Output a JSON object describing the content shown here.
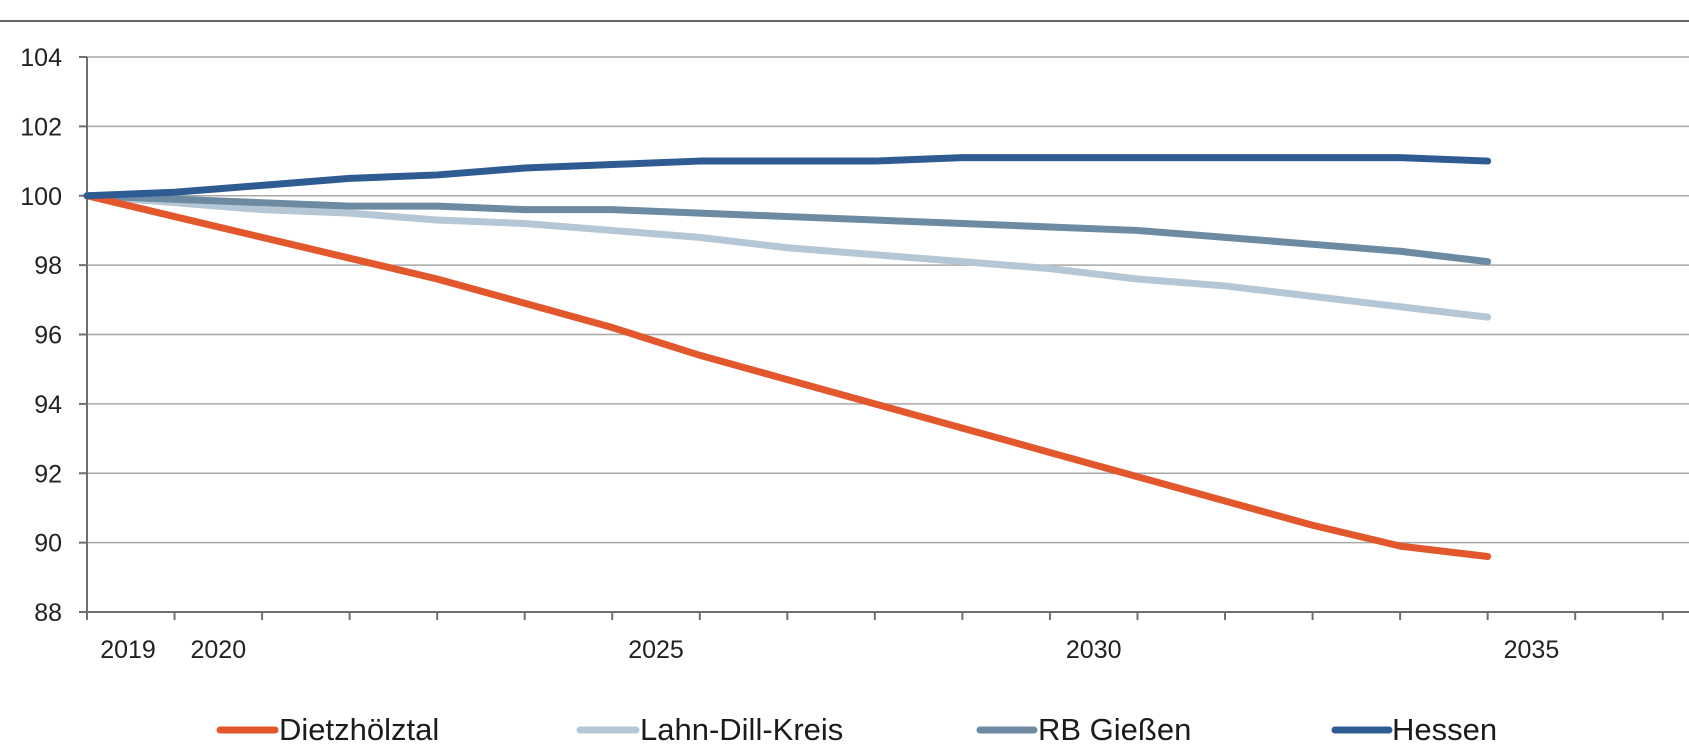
{
  "chart_data": {
    "type": "line",
    "title": "",
    "xlabel": "",
    "ylabel": "",
    "x_ticks": [
      2019,
      2020,
      2025,
      2030,
      2035
    ],
    "xlim": [
      2019,
      2037
    ],
    "ylim": [
      88,
      104
    ],
    "y_ticks": [
      88,
      90,
      92,
      94,
      96,
      98,
      100,
      102,
      104
    ],
    "grid": "horizontal",
    "legend_position": "bottom",
    "series": [
      {
        "name": "Dietzhölztal",
        "color": "#E2572C",
        "x": [
          2019,
          2020,
          2021,
          2022,
          2023,
          2024,
          2025,
          2026,
          2027,
          2028,
          2029,
          2030,
          2031,
          2032,
          2033,
          2034,
          2035
        ],
        "y": [
          100,
          99.4,
          98.8,
          98.2,
          97.6,
          96.9,
          96.2,
          95.4,
          94.7,
          94.0,
          93.3,
          92.6,
          91.9,
          91.2,
          90.5,
          89.9,
          89.6
        ]
      },
      {
        "name": "Lahn-Dill-Kreis",
        "color": "#B5C6D5",
        "x": [
          2019,
          2020,
          2021,
          2022,
          2023,
          2024,
          2025,
          2026,
          2027,
          2028,
          2029,
          2030,
          2031,
          2032,
          2033,
          2034,
          2035
        ],
        "y": [
          100,
          99.8,
          99.6,
          99.5,
          99.3,
          99.2,
          99.0,
          98.8,
          98.5,
          98.3,
          98.1,
          97.9,
          97.6,
          97.4,
          97.1,
          96.8,
          96.5
        ]
      },
      {
        "name": "RB Gießen",
        "color": "#6C8BA3",
        "x": [
          2019,
          2020,
          2021,
          2022,
          2023,
          2024,
          2025,
          2026,
          2027,
          2028,
          2029,
          2030,
          2031,
          2032,
          2033,
          2034,
          2035
        ],
        "y": [
          100,
          99.9,
          99.8,
          99.7,
          99.7,
          99.6,
          99.6,
          99.5,
          99.4,
          99.3,
          99.2,
          99.1,
          99.0,
          98.8,
          98.6,
          98.4,
          98.1
        ]
      },
      {
        "name": "Hessen",
        "color": "#2F5B93",
        "x": [
          2019,
          2020,
          2021,
          2022,
          2023,
          2024,
          2025,
          2026,
          2027,
          2028,
          2029,
          2030,
          2031,
          2032,
          2033,
          2034,
          2035
        ],
        "y": [
          100,
          100.1,
          100.3,
          100.5,
          100.6,
          100.8,
          100.9,
          101.0,
          101.0,
          101.0,
          101.1,
          101.1,
          101.1,
          101.1,
          101.1,
          101.1,
          101.0
        ]
      }
    ]
  }
}
